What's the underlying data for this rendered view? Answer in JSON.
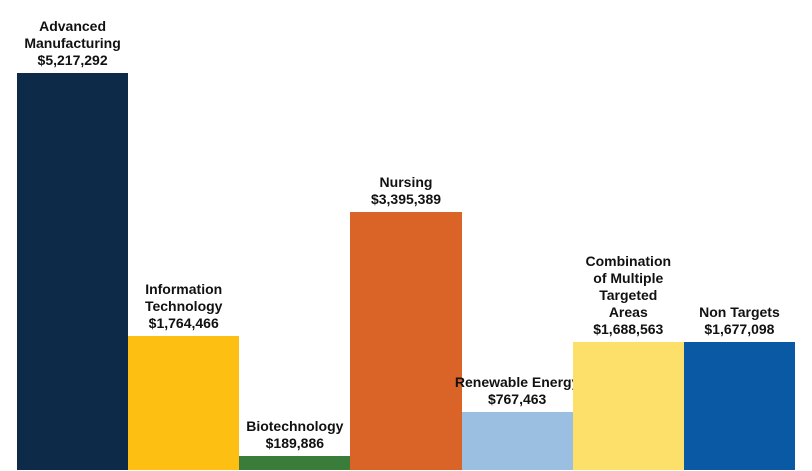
{
  "chart_data": {
    "type": "bar",
    "categories": [
      "Advanced\nManufacturing",
      "Information\nTechnology",
      "Biotechnology",
      "Nursing",
      "Renewable Energy",
      "Combination\nof Multiple\nTargeted\nAreas",
      "Non Targets"
    ],
    "values": [
      5217292,
      1764466,
      189886,
      3395389,
      767463,
      1688563,
      1677098
    ],
    "value_labels": [
      "$5,217,292",
      "$1,764,466",
      "$189,886",
      "$3,395,389",
      "$767,463",
      "$1,688,563",
      "$1,677,098"
    ],
    "colors": [
      "#0d2a48",
      "#fdbf11",
      "#3a7d3a",
      "#da6428",
      "#9bbfe0",
      "#fde06a",
      "#0a59a4"
    ]
  }
}
